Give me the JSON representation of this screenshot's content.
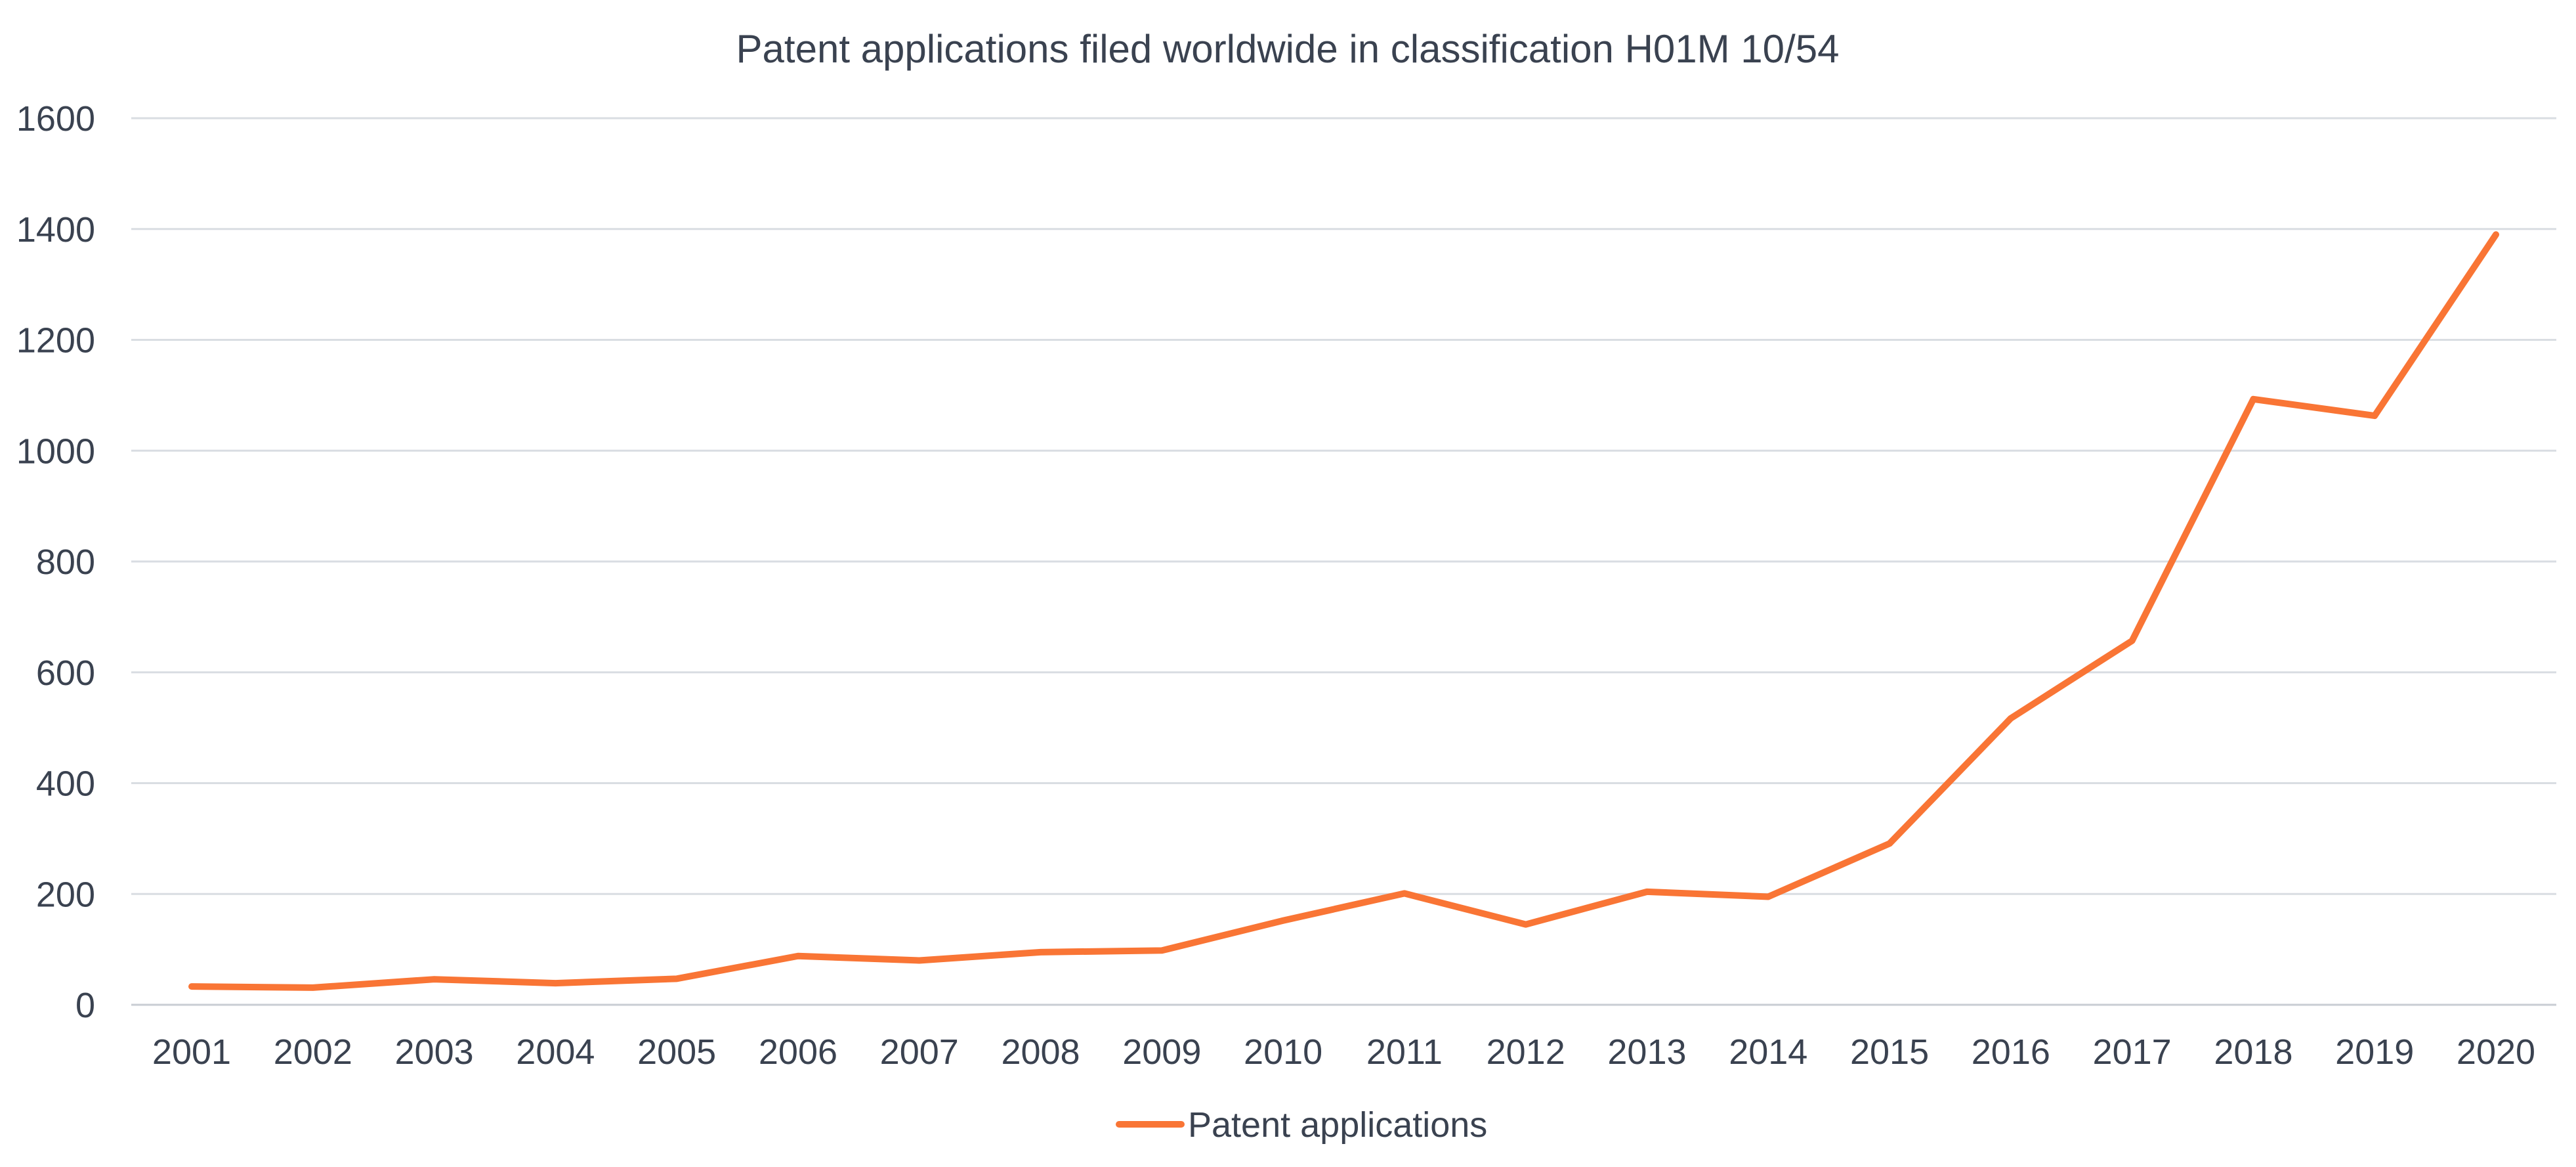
{
  "chart_data": {
    "type": "line",
    "title": "Patent applications filed worldwide in classification H01M 10/54",
    "xlabel": "",
    "ylabel": "",
    "categories": [
      "2001",
      "2002",
      "2003",
      "2004",
      "2005",
      "2006",
      "2007",
      "2008",
      "2009",
      "2010",
      "2011",
      "2012",
      "2013",
      "2014",
      "2015",
      "2016",
      "2017",
      "2018",
      "2019",
      "2020"
    ],
    "series": [
      {
        "name": "Patent applications",
        "color": "#f97535",
        "values": [
          33,
          31,
          46,
          39,
          47,
          88,
          80,
          95,
          98,
          152,
          201,
          145,
          204,
          195,
          291,
          517,
          657,
          1093,
          1063,
          1390
        ]
      }
    ],
    "ylim": [
      0,
      1600
    ],
    "yticks": [
      0,
      200,
      400,
      600,
      800,
      1000,
      1200,
      1400,
      1600
    ],
    "grid": true,
    "legend_position": "bottom-center"
  }
}
